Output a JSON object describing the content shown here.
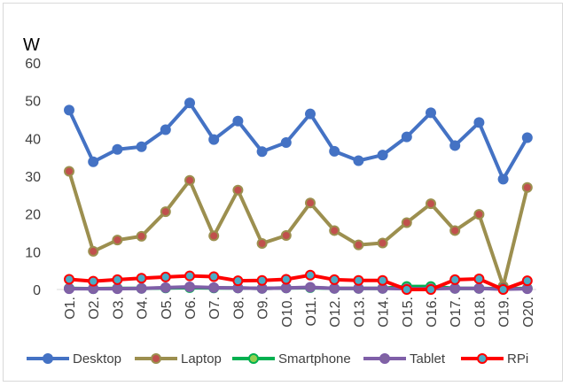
{
  "chart_data": {
    "type": "line",
    "unit_label": "W",
    "categories": [
      "O1.",
      "O2.",
      "O3.",
      "O4.",
      "O5.",
      "O6.",
      "O7.",
      "O8.",
      "O9.",
      "O10.",
      "O11.",
      "O12.",
      "O13.",
      "O14.",
      "O15.",
      "O16.",
      "O17.",
      "O18.",
      "O19.",
      "O20."
    ],
    "ylim": [
      0,
      60
    ],
    "yticks": [
      0,
      10,
      20,
      30,
      40,
      50,
      60
    ],
    "grid": false,
    "legend_position": "bottom",
    "series": [
      {
        "name": "Desktop",
        "line_color": "#4472c4",
        "marker_color": "#4472c4",
        "marker_edge": "#4472c4",
        "values": [
          47.5,
          33.8,
          37.1,
          37.8,
          42.3,
          49.4,
          39.7,
          44.6,
          36.5,
          38.9,
          46.5,
          36.6,
          34.1,
          35.6,
          40.4,
          46.8,
          38.1,
          44.2,
          29.2,
          40.2
        ]
      },
      {
        "name": "Laptop",
        "line_color": "#9c8f4f",
        "marker_color": "#c0504d",
        "marker_edge": "#9c8f4f",
        "values": [
          31.3,
          10.1,
          13.1,
          14.1,
          20.6,
          28.9,
          14.2,
          26.3,
          12.2,
          14.3,
          22.9,
          15.6,
          11.8,
          12.3,
          17.7,
          22.7,
          15.6,
          19.9,
          0.9,
          27.0
        ]
      },
      {
        "name": "Smartphone",
        "line_color": "#00b050",
        "marker_color": "#92d050",
        "marker_edge": "#00b050",
        "values": [
          0.3,
          0.2,
          0.3,
          0.3,
          0.4,
          0.5,
          0.4,
          0.4,
          0.3,
          0.4,
          0.5,
          0.3,
          0.3,
          0.3,
          0.8,
          0.8,
          0.3,
          0.3,
          0.2,
          0.3
        ]
      },
      {
        "name": "Tablet",
        "line_color": "#7f5fa8",
        "marker_color": "#8064a2",
        "marker_edge": "#7f5fa8",
        "values": [
          0.2,
          0.2,
          0.2,
          0.3,
          0.5,
          0.7,
          0.5,
          0.4,
          0.3,
          0.4,
          0.6,
          0.3,
          0.3,
          0.3,
          0.2,
          0.2,
          0.3,
          0.3,
          0.1,
          0.2
        ]
      },
      {
        "name": "RPi",
        "line_color": "#ff0000",
        "marker_color": "#4bacc6",
        "marker_edge": "#ff0000",
        "values": [
          2.7,
          2.2,
          2.6,
          3.0,
          3.3,
          3.6,
          3.4,
          2.3,
          2.4,
          2.7,
          3.8,
          2.6,
          2.4,
          2.4,
          0.0,
          0.0,
          2.6,
          2.8,
          0.0,
          2.3
        ]
      }
    ]
  }
}
